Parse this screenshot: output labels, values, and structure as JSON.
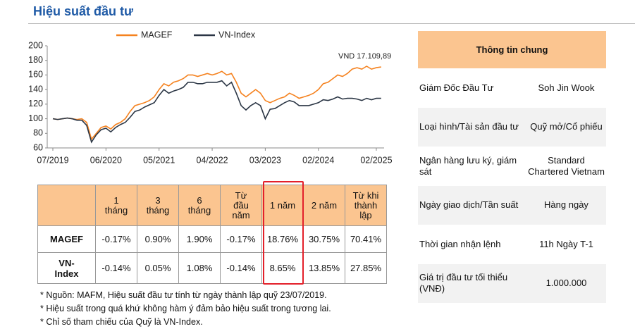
{
  "header": {
    "title": "Hiệu suất đầu tư"
  },
  "chart_data": {
    "type": "line",
    "x": [
      "07/2019",
      "08/2019",
      "09/2019",
      "10/2019",
      "11/2019",
      "12/2019",
      "01/2020",
      "02/2020",
      "03/2020",
      "04/2020",
      "05/2020",
      "06/2020",
      "07/2020",
      "08/2020",
      "09/2020",
      "10/2020",
      "11/2020",
      "12/2020",
      "01/2021",
      "02/2021",
      "03/2021",
      "04/2021",
      "05/2021",
      "06/2021",
      "07/2021",
      "08/2021",
      "09/2021",
      "10/2021",
      "11/2021",
      "12/2021",
      "01/2022",
      "02/2022",
      "03/2022",
      "04/2022",
      "05/2022",
      "06/2022",
      "07/2022",
      "08/2022",
      "09/2022",
      "10/2022",
      "11/2022",
      "12/2022",
      "01/2023",
      "02/2023",
      "03/2023",
      "04/2023",
      "05/2023",
      "06/2023",
      "07/2023",
      "08/2023",
      "09/2023",
      "10/2023",
      "11/2023",
      "12/2023",
      "01/2024",
      "02/2024",
      "03/2024",
      "04/2024",
      "05/2024",
      "06/2024",
      "07/2024",
      "08/2024",
      "09/2024",
      "10/2024",
      "11/2024",
      "12/2024",
      "01/2025",
      "02/2025",
      "03/2025"
    ],
    "series": [
      {
        "name": "MAGEF",
        "color": "#f5821f",
        "values": [
          100,
          99,
          100,
          101,
          100,
          99,
          100,
          95,
          72,
          80,
          88,
          90,
          86,
          92,
          95,
          100,
          110,
          118,
          120,
          122,
          125,
          130,
          140,
          148,
          145,
          150,
          152,
          155,
          160,
          160,
          158,
          160,
          162,
          160,
          162,
          165,
          160,
          162,
          150,
          135,
          130,
          135,
          140,
          135,
          125,
          122,
          125,
          128,
          130,
          135,
          132,
          128,
          130,
          132,
          135,
          140,
          148,
          150,
          155,
          160,
          158,
          162,
          168,
          170,
          168,
          172,
          168,
          170,
          171
        ]
      },
      {
        "name": "VN-Index",
        "color": "#2b3645",
        "values": [
          100,
          99,
          100,
          101,
          100,
          98,
          98,
          91,
          68,
          78,
          85,
          87,
          82,
          88,
          92,
          95,
          102,
          110,
          112,
          116,
          119,
          122,
          132,
          140,
          135,
          138,
          140,
          143,
          150,
          150,
          148,
          148,
          150,
          150,
          150,
          152,
          145,
          150,
          135,
          118,
          112,
          118,
          122,
          118,
          100,
          113,
          114,
          118,
          122,
          125,
          123,
          118,
          118,
          118,
          120,
          122,
          126,
          125,
          127,
          130,
          127,
          128,
          128,
          127,
          125,
          128,
          126,
          128,
          128
        ]
      }
    ],
    "ylim": [
      60,
      200
    ],
    "yticks": [
      60,
      80,
      100,
      120,
      140,
      160,
      180,
      200
    ],
    "xticks": [
      "07/2019",
      "06/2020",
      "05/2021",
      "04/2022",
      "03/2023",
      "02/2024",
      "02/2025"
    ],
    "annotation": "VND 17.109,89",
    "legend": "top"
  },
  "performance_table": {
    "columns": [
      "1 tháng",
      "3 tháng",
      "6 tháng",
      "Từ đầu năm",
      "1 năm",
      "2 năm",
      "Từ khi thành lập"
    ],
    "rows": [
      [
        "MAGEF",
        "-0.17%",
        "0.90%",
        "1.90%",
        "-0.17%",
        "18.76%",
        "30.75%",
        "70.41%"
      ],
      [
        "VN-Index",
        "-0.14%",
        "0.05%",
        "1.08%",
        "-0.14%",
        "8.65%",
        "13.85%",
        "27.85%"
      ]
    ]
  },
  "notes": [
    "* Nguồn: MAFM, Hiệu suất đầu tư tính từ ngày thành lập quỹ 23/07/2019.",
    "* Hiệu suất trong quá khứ không hàm ý đảm bảo hiệu suất trong tương lai.",
    "* Chỉ số tham chiếu của Quỹ là VN-Index."
  ],
  "info_table": {
    "title": "Thông tin chung",
    "rows": [
      [
        "Giám Đốc Đầu Tư",
        "Soh Jin Wook"
      ],
      [
        "Loại hình/Tài sản đầu tư",
        "Quỹ mở/Cổ phiếu"
      ],
      [
        "Ngân hàng lưu ký, giám sát",
        "Standard Chartered Vietnam"
      ],
      [
        "Ngày giao dịch/Tần suất",
        "Hàng ngày"
      ],
      [
        "Thời gian nhận lệnh",
        "11h Ngày T-1"
      ],
      [
        "Giá trị đầu tư tối thiểu (VNĐ)",
        "1.000.000"
      ]
    ]
  }
}
